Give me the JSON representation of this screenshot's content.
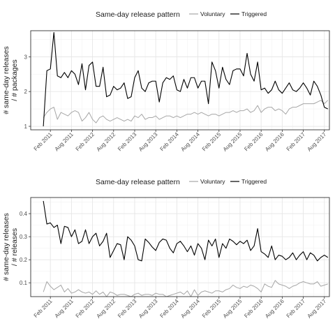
{
  "chart_data": [
    {
      "type": "line",
      "legend": {
        "title": "Same-day release pattern",
        "position": "top",
        "entries": [
          {
            "name": "Voluntary",
            "color": "#a6a6a6"
          },
          {
            "name": "Triggered",
            "color": "#000000"
          }
        ]
      },
      "ylabel_lines": [
        "# same-day releases",
        "/ # packages"
      ],
      "xlabel": "",
      "grid": true,
      "x_ticks": [
        "Feb 2011",
        "Aug 2011",
        "Feb 2012",
        "Aug 2012",
        "Feb 2013",
        "Aug 2013",
        "Feb 2014",
        "Aug 2014",
        "Feb 2015",
        "Aug 2015",
        "Feb 2016",
        "Aug 2016",
        "Feb 2017",
        "Aug 2017"
      ],
      "y_ticks": [
        1,
        2,
        3
      ],
      "ylim": [
        0.9,
        3.75
      ],
      "x_start": "2010-12",
      "series": [
        {
          "name": "Triggered",
          "color": "#000000",
          "values": [
            1.0,
            2.6,
            2.65,
            3.7,
            2.45,
            2.4,
            2.55,
            2.4,
            2.6,
            2.5,
            2.2,
            2.8,
            2.05,
            2.75,
            2.85,
            2.15,
            2.15,
            2.7,
            1.85,
            1.9,
            2.15,
            2.05,
            2.1,
            2.25,
            1.8,
            1.85,
            2.4,
            2.6,
            2.1,
            2.0,
            2.25,
            2.3,
            2.3,
            1.7,
            2.25,
            2.4,
            2.35,
            2.45,
            2.05,
            2.0,
            2.35,
            2.1,
            2.4,
            2.4,
            2.1,
            2.3,
            2.3,
            1.65,
            2.85,
            2.6,
            2.1,
            2.7,
            2.35,
            2.2,
            2.6,
            2.65,
            2.65,
            2.45,
            3.1,
            2.5,
            2.3,
            2.85,
            2.05,
            2.1,
            1.95,
            2.05,
            2.3,
            2.05,
            1.95,
            2.1,
            2.25,
            2.05,
            2.0,
            2.1,
            2.25,
            2.1,
            1.9,
            2.3,
            2.15,
            1.9,
            1.55,
            1.5
          ]
        },
        {
          "name": "Voluntary",
          "color": "#a6a6a6",
          "values": [
            1.25,
            1.4,
            1.5,
            1.55,
            1.2,
            1.4,
            1.35,
            1.3,
            1.4,
            1.45,
            1.4,
            1.15,
            1.25,
            1.4,
            1.2,
            1.1,
            1.25,
            1.3,
            1.2,
            1.15,
            1.2,
            1.25,
            1.2,
            1.15,
            1.2,
            1.15,
            1.3,
            1.25,
            1.35,
            1.2,
            1.25,
            1.25,
            1.3,
            1.2,
            1.25,
            1.3,
            1.3,
            1.25,
            1.3,
            1.25,
            1.3,
            1.35,
            1.35,
            1.4,
            1.35,
            1.4,
            1.35,
            1.3,
            1.35,
            1.35,
            1.3,
            1.35,
            1.4,
            1.4,
            1.45,
            1.4,
            1.45,
            1.45,
            1.5,
            1.4,
            1.45,
            1.6,
            1.4,
            1.5,
            1.55,
            1.55,
            1.45,
            1.5,
            1.45,
            1.35,
            1.5,
            1.55,
            1.55,
            1.6,
            1.65,
            1.65,
            1.65,
            1.65,
            1.7,
            1.75,
            1.65,
            1.75
          ]
        }
      ]
    },
    {
      "type": "line",
      "legend": {
        "title": "Same-day release pattern",
        "position": "top",
        "entries": [
          {
            "name": "Voluntary",
            "color": "#a6a6a6"
          },
          {
            "name": "Triggered",
            "color": "#000000"
          }
        ]
      },
      "ylabel_lines": [
        "# same-day releases",
        "/ # releases"
      ],
      "xlabel": "",
      "grid": true,
      "x_ticks": [
        "Feb 2011",
        "Aug 2011",
        "Feb 2012",
        "Aug 2012",
        "Feb 2013",
        "Aug 2013",
        "Feb 2014",
        "Aug 2014",
        "Feb 2015",
        "Aug 2015",
        "Feb 2016",
        "Aug 2016",
        "Feb 2017",
        "Aug 2017"
      ],
      "y_ticks": [
        0.1,
        0.2,
        0.3,
        0.4
      ],
      "ylim": [
        0.04,
        0.47
      ],
      "x_start": "2010-12",
      "series": [
        {
          "name": "Triggered",
          "color": "#000000",
          "values": [
            0.455,
            0.355,
            0.36,
            0.34,
            0.35,
            0.27,
            0.345,
            0.34,
            0.3,
            0.33,
            0.27,
            0.28,
            0.33,
            0.27,
            0.3,
            0.315,
            0.26,
            0.28,
            0.315,
            0.21,
            0.24,
            0.27,
            0.265,
            0.2,
            0.3,
            0.285,
            0.26,
            0.2,
            0.195,
            0.29,
            0.275,
            0.255,
            0.24,
            0.275,
            0.29,
            0.285,
            0.25,
            0.23,
            0.27,
            0.28,
            0.26,
            0.235,
            0.26,
            0.22,
            0.27,
            0.25,
            0.2,
            0.285,
            0.26,
            0.29,
            0.21,
            0.27,
            0.25,
            0.29,
            0.28,
            0.265,
            0.28,
            0.27,
            0.285,
            0.24,
            0.26,
            0.335,
            0.235,
            0.225,
            0.21,
            0.26,
            0.2,
            0.22,
            0.215,
            0.2,
            0.21,
            0.23,
            0.2,
            0.22,
            0.235,
            0.2,
            0.23,
            0.22,
            0.195,
            0.21,
            0.22,
            0.21
          ]
        },
        {
          "name": "Voluntary",
          "color": "#a6a6a6",
          "values": [
            0.06,
            0.105,
            0.085,
            0.07,
            0.08,
            0.09,
            0.06,
            0.075,
            0.055,
            0.06,
            0.07,
            0.06,
            0.055,
            0.06,
            0.05,
            0.065,
            0.05,
            0.06,
            0.04,
            0.06,
            0.055,
            0.045,
            0.05,
            0.05,
            0.045,
            0.04,
            0.05,
            0.055,
            0.045,
            0.05,
            0.05,
            0.045,
            0.055,
            0.05,
            0.05,
            0.04,
            0.045,
            0.05,
            0.055,
            0.06,
            0.05,
            0.065,
            0.04,
            0.07,
            0.045,
            0.06,
            0.065,
            0.06,
            0.055,
            0.065,
            0.065,
            0.06,
            0.07,
            0.075,
            0.09,
            0.08,
            0.075,
            0.085,
            0.08,
            0.09,
            0.085,
            0.075,
            0.06,
            0.095,
            0.085,
            0.08,
            0.11,
            0.095,
            0.09,
            0.085,
            0.075,
            0.085,
            0.09,
            0.1,
            0.105,
            0.1,
            0.095,
            0.095,
            0.105,
            0.085,
            0.09,
            0.095
          ]
        }
      ]
    }
  ]
}
